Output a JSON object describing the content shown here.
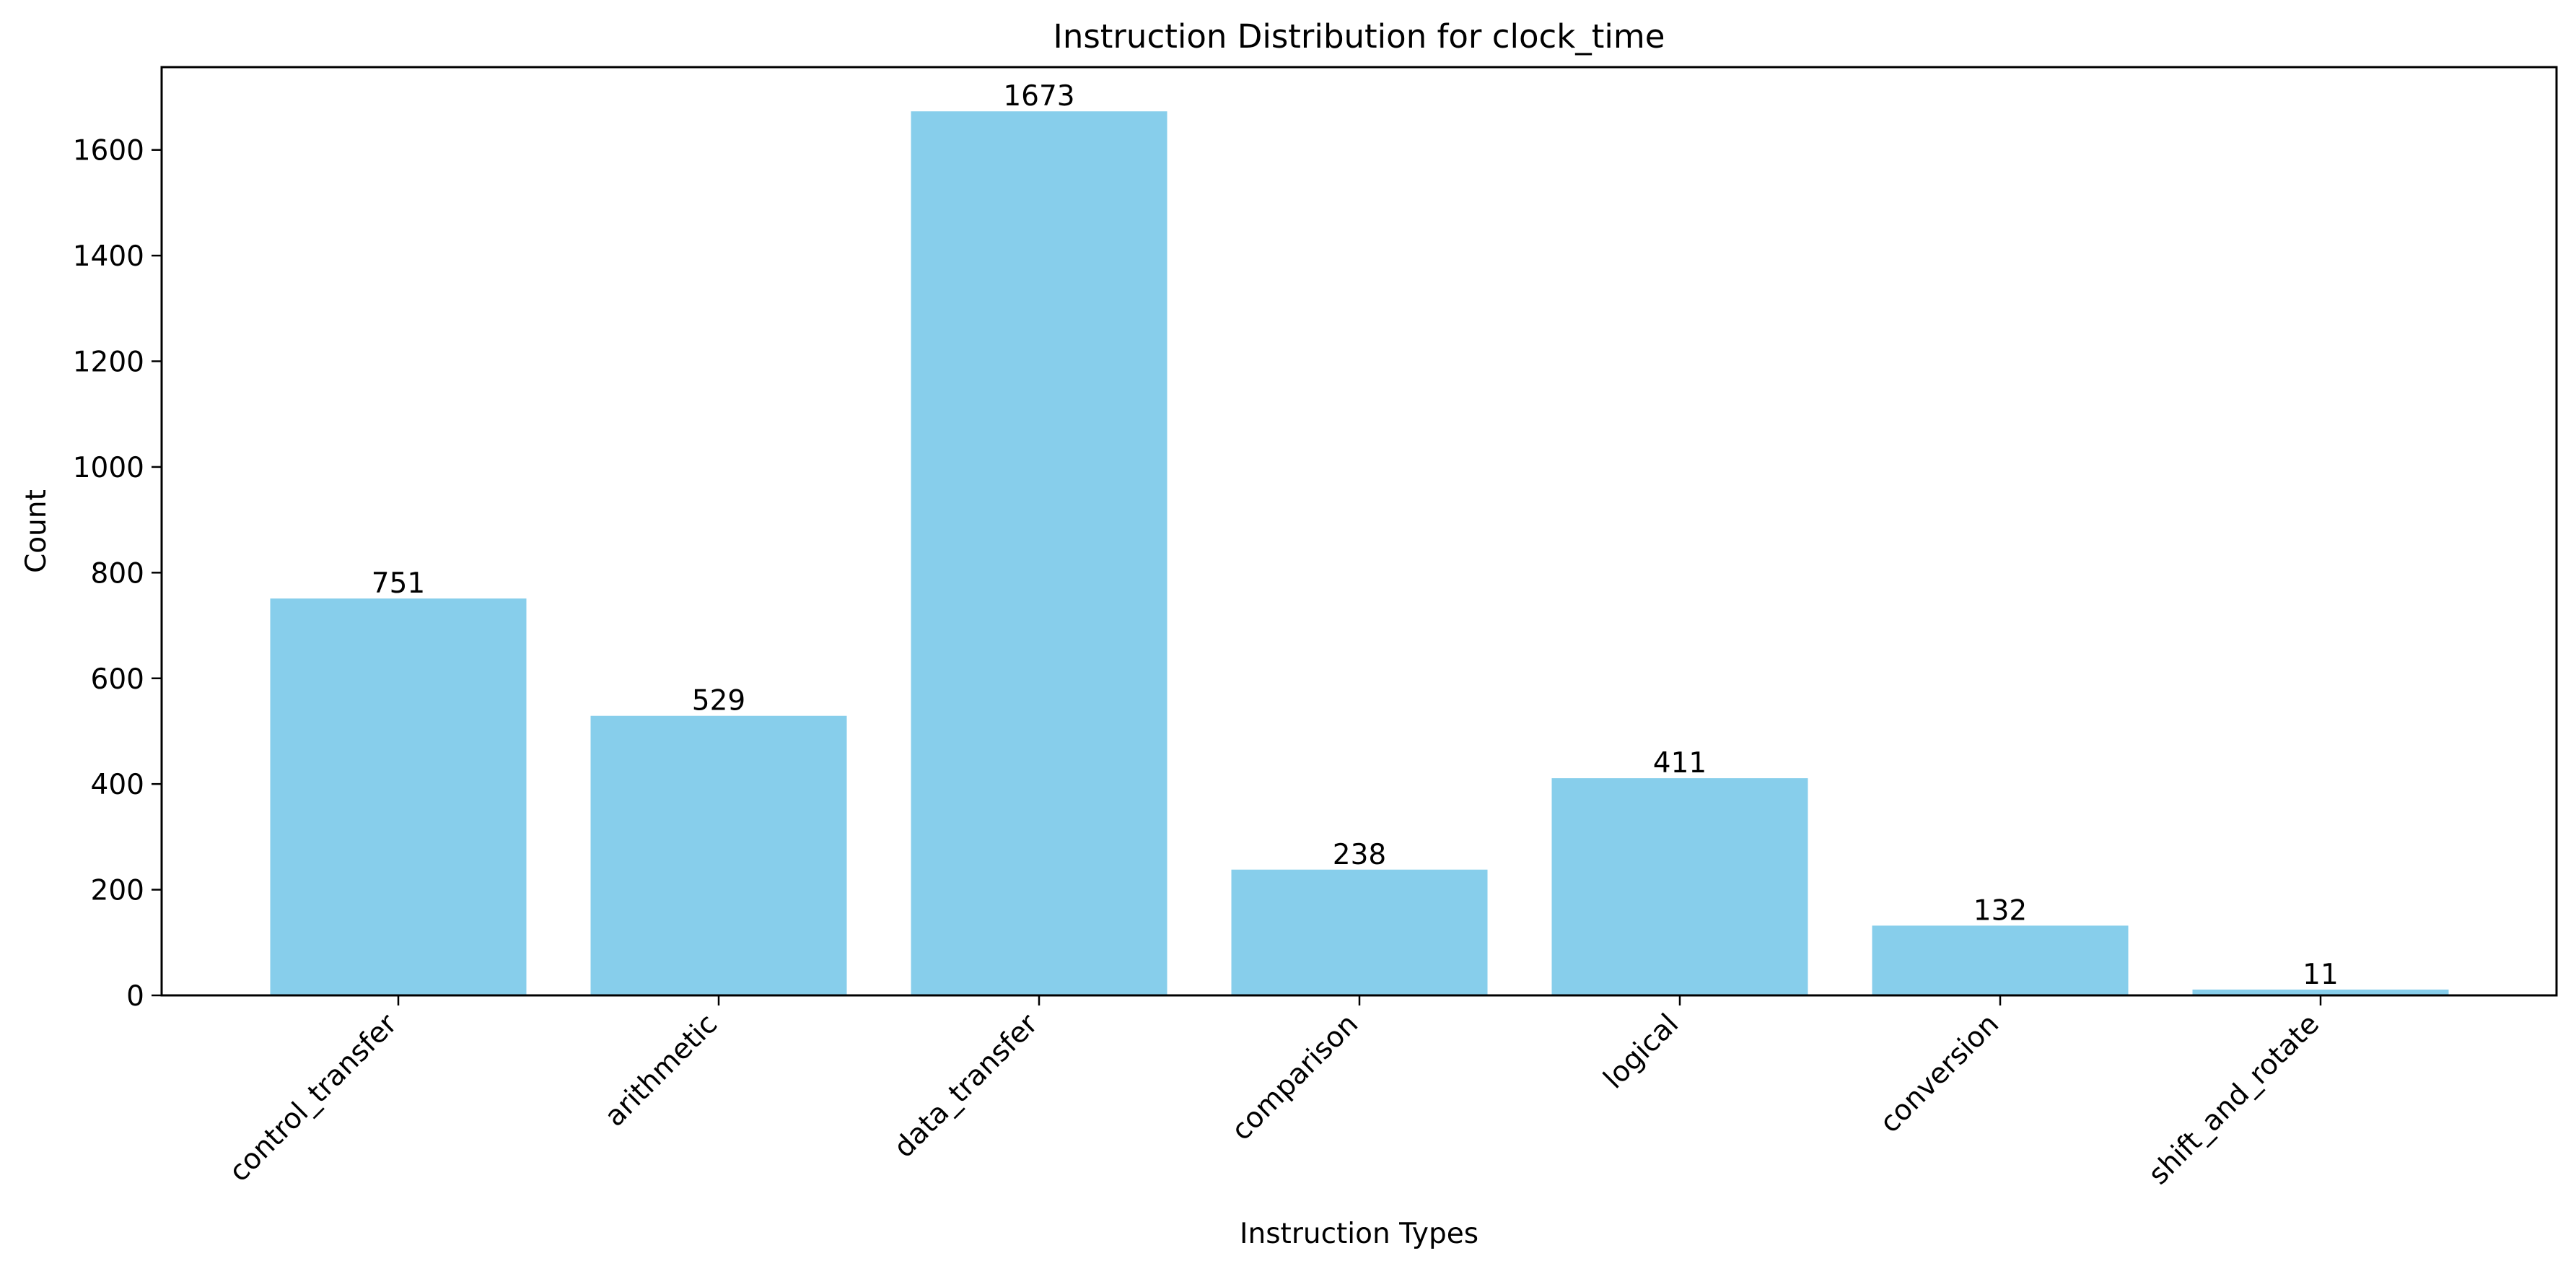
{
  "chart_data": {
    "type": "bar",
    "title": "Instruction Distribution for clock_time",
    "xlabel": "Instruction Types",
    "ylabel": "Count",
    "categories": [
      "control_transfer",
      "arithmetic",
      "data_transfer",
      "comparison",
      "logical",
      "conversion",
      "shift_and_rotate"
    ],
    "values": [
      751,
      529,
      1673,
      238,
      411,
      132,
      11
    ],
    "ylim": [
      0,
      1756.65
    ],
    "yticks": [
      0,
      200,
      400,
      600,
      800,
      1000,
      1200,
      1400,
      1600
    ],
    "bar_color": "#87ceeb",
    "grid": false,
    "legend": "none"
  }
}
